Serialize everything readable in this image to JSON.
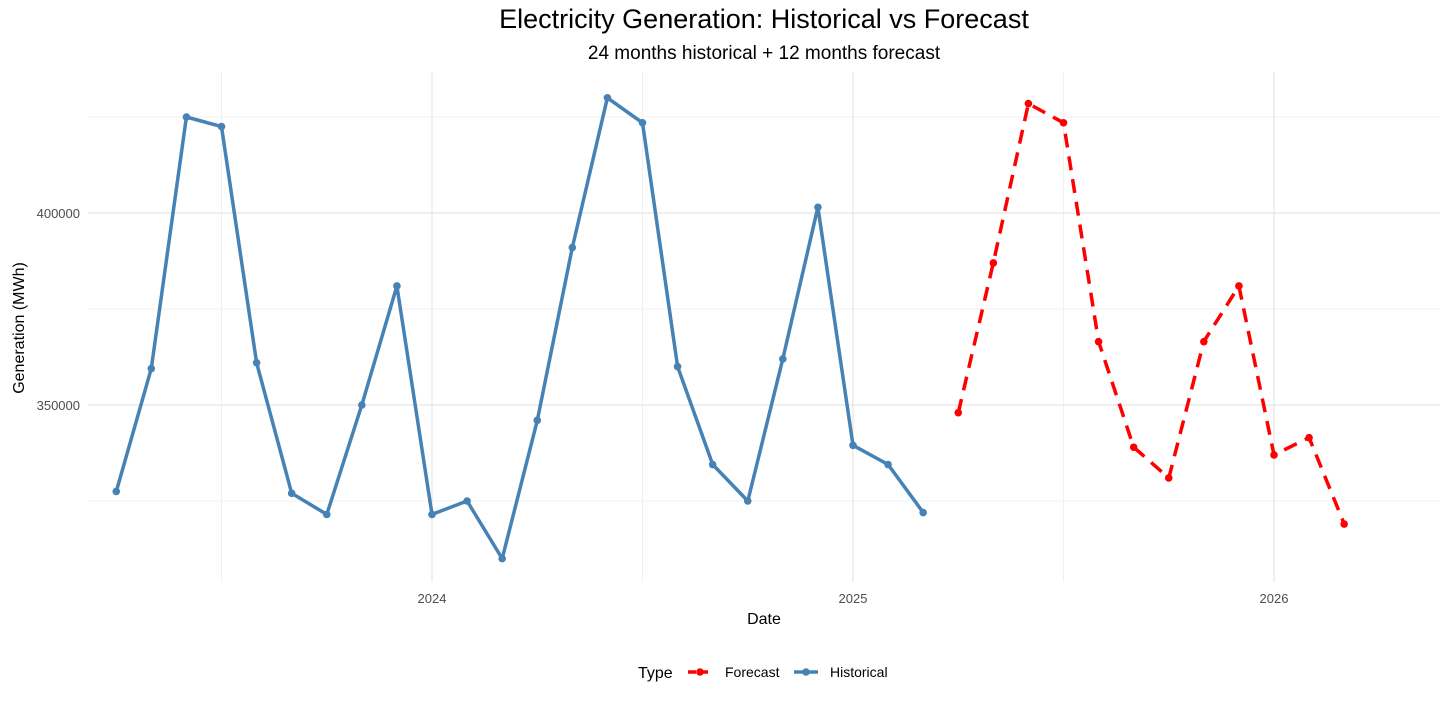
{
  "chart_data": {
    "type": "line",
    "title": "Electricity Generation: Historical vs Forecast",
    "subtitle": "24 months historical + 12 months forecast",
    "xlabel": "Date",
    "ylabel": "Generation (MWh)",
    "x_ticks": [
      "2024",
      "2025",
      "2026"
    ],
    "y_ticks": [
      350000,
      400000
    ],
    "legend": {
      "title": "Type",
      "position": "bottom"
    },
    "series": [
      {
        "name": "Historical",
        "color": "#4682B4",
        "style": "solid",
        "x": [
          "2023-04",
          "2023-05",
          "2023-06",
          "2023-07",
          "2023-08",
          "2023-09",
          "2023-10",
          "2023-11",
          "2023-12",
          "2024-01",
          "2024-02",
          "2024-03",
          "2024-04",
          "2024-05",
          "2024-06",
          "2024-07",
          "2024-08",
          "2024-09",
          "2024-10",
          "2024-11",
          "2024-12",
          "2025-01",
          "2025-02",
          "2025-03"
        ],
        "values": [
          327500,
          359500,
          425000,
          422500,
          361000,
          327000,
          321500,
          350000,
          381000,
          321500,
          325000,
          310000,
          346000,
          391000,
          430000,
          423500,
          360000,
          334500,
          325000,
          362000,
          401500,
          339500,
          334500,
          322000
        ]
      },
      {
        "name": "Forecast",
        "color": "#FF0000",
        "style": "dashed",
        "x": [
          "2025-04",
          "2025-05",
          "2025-06",
          "2025-07",
          "2025-08",
          "2025-09",
          "2025-10",
          "2025-11",
          "2025-12",
          "2026-01",
          "2026-02",
          "2026-03"
        ],
        "values": [
          348000,
          387000,
          428500,
          423500,
          366500,
          339000,
          331000,
          366500,
          381000,
          337000,
          341500,
          319000
        ]
      }
    ]
  }
}
